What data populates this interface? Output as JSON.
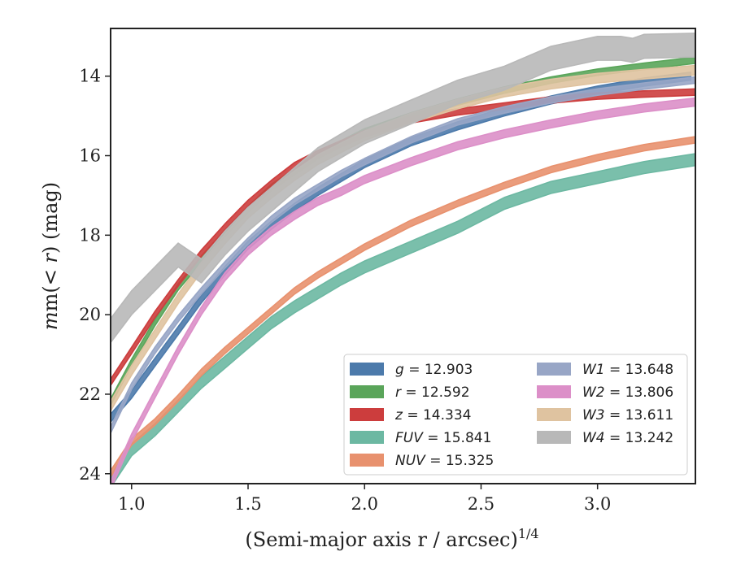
{
  "chart_data": {
    "type": "line",
    "xlabel": "(Semi-major axis r / arcsec)",
    "xlabel_power": "1/4",
    "ylabel_prefix": "m(",
    "ylabel_math": "< r",
    "ylabel_suffix": ") (mag)",
    "xlim": [
      0.91,
      3.42
    ],
    "ylim": [
      24.25,
      12.8
    ],
    "y_inverted": true,
    "xticks": [
      1.0,
      1.5,
      2.0,
      2.5,
      3.0
    ],
    "xtick_labels": [
      "1.0",
      "1.5",
      "2.0",
      "2.5",
      "3.0"
    ],
    "yticks": [
      14,
      16,
      18,
      20,
      22,
      24
    ],
    "ytick_labels": [
      "14",
      "16",
      "18",
      "20",
      "22",
      "24"
    ],
    "grid": false,
    "legend_position": "lower-right",
    "series": [
      {
        "name": "g = 12.903",
        "label_var": "g",
        "label_value": "12.903",
        "color": "#4c7aab",
        "x": [
          0.91,
          1.0,
          1.1,
          1.2,
          1.3,
          1.4,
          1.5,
          1.6,
          1.7,
          1.8,
          1.9,
          2.0,
          2.2,
          2.4,
          2.6,
          2.8,
          3.0,
          3.2,
          3.4
        ],
        "y": [
          22.6,
          22.0,
          21.2,
          20.4,
          19.6,
          18.9,
          18.25,
          17.75,
          17.3,
          16.9,
          16.55,
          16.2,
          15.65,
          15.25,
          14.9,
          14.6,
          14.35,
          14.15,
          14.0
        ],
        "band": 0.1
      },
      {
        "name": "r = 12.592",
        "label_var": "r",
        "label_value": "12.592",
        "color": "#5aa55a",
        "x": [
          0.91,
          1.0,
          1.1,
          1.2,
          1.3,
          1.4,
          1.5,
          1.6,
          1.7,
          1.8,
          1.9,
          2.0,
          2.2,
          2.4,
          2.6,
          2.8,
          3.0,
          3.2,
          3.42
        ],
        "y": [
          22.2,
          21.2,
          20.2,
          19.3,
          18.6,
          17.95,
          17.35,
          16.8,
          16.4,
          16.0,
          15.7,
          15.4,
          15.0,
          14.65,
          14.35,
          14.1,
          13.9,
          13.75,
          13.6
        ],
        "band": 0.08
      },
      {
        "name": "z = 14.334",
        "label_var": "z",
        "label_value": "14.334",
        "color": "#cc3d3d",
        "x": [
          0.91,
          1.0,
          1.1,
          1.2,
          1.3,
          1.4,
          1.5,
          1.6,
          1.7,
          1.8,
          1.9,
          2.0,
          2.2,
          2.4,
          2.6,
          2.8,
          3.0,
          3.2,
          3.42
        ],
        "y": [
          21.7,
          20.9,
          20.0,
          19.2,
          18.45,
          17.8,
          17.2,
          16.7,
          16.25,
          15.95,
          15.7,
          15.45,
          15.1,
          14.9,
          14.75,
          14.6,
          14.5,
          14.45,
          14.4
        ],
        "band": 0.08
      },
      {
        "name": "FUV = 15.841",
        "label_var": "FUV",
        "label_value": "15.841",
        "color": "#6cb8a2",
        "x": [
          0.91,
          1.0,
          1.1,
          1.2,
          1.3,
          1.4,
          1.5,
          1.6,
          1.7,
          1.8,
          1.9,
          2.0,
          2.2,
          2.4,
          2.6,
          2.8,
          3.0,
          3.2,
          3.42
        ],
        "y": [
          24.2,
          23.4,
          22.9,
          22.3,
          21.7,
          21.2,
          20.7,
          20.2,
          19.8,
          19.45,
          19.1,
          18.8,
          18.3,
          17.8,
          17.2,
          16.8,
          16.55,
          16.3,
          16.1
        ],
        "band": 0.15
      },
      {
        "name": "NUV = 15.325",
        "label_var": "NUV",
        "label_value": "15.325",
        "color": "#e8916e",
        "x": [
          0.91,
          1.0,
          1.1,
          1.2,
          1.3,
          1.4,
          1.5,
          1.6,
          1.7,
          1.8,
          1.9,
          2.0,
          2.2,
          2.4,
          2.6,
          2.8,
          3.0,
          3.2,
          3.42
        ],
        "y": [
          24.0,
          23.2,
          22.7,
          22.1,
          21.45,
          20.9,
          20.4,
          19.9,
          19.4,
          19.0,
          18.65,
          18.3,
          17.7,
          17.2,
          16.75,
          16.35,
          16.05,
          15.8,
          15.6
        ],
        "band": 0.08
      },
      {
        "name": "W1 = 13.648",
        "label_var": "W1",
        "label_value": "13.648",
        "color": "#98a6c6",
        "x": [
          0.91,
          1.0,
          1.1,
          1.2,
          1.3,
          1.4,
          1.5,
          1.6,
          1.7,
          1.8,
          1.9,
          2.0,
          2.2,
          2.4,
          2.6,
          2.8,
          3.0,
          3.2,
          3.42
        ],
        "y": [
          22.9,
          21.8,
          20.9,
          20.1,
          19.4,
          18.75,
          18.15,
          17.6,
          17.15,
          16.8,
          16.45,
          16.15,
          15.6,
          15.15,
          14.85,
          14.6,
          14.4,
          14.25,
          14.1
        ],
        "band": 0.08
      },
      {
        "name": "W2 = 13.806",
        "label_var": "W2",
        "label_value": "13.806",
        "color": "#dc8fc8",
        "x": [
          0.91,
          1.0,
          1.1,
          1.2,
          1.3,
          1.4,
          1.5,
          1.6,
          1.7,
          1.8,
          1.9,
          2.0,
          2.2,
          2.4,
          2.6,
          2.8,
          3.0,
          3.2,
          3.42
        ],
        "y": [
          24.3,
          23.1,
          22.0,
          20.9,
          19.9,
          19.05,
          18.4,
          17.9,
          17.5,
          17.15,
          16.9,
          16.6,
          16.15,
          15.75,
          15.45,
          15.2,
          14.98,
          14.8,
          14.65
        ],
        "band": 0.1
      },
      {
        "name": "W3 = 13.611",
        "label_var": "W3",
        "label_value": "13.611",
        "color": "#dfc3a0",
        "x": [
          0.91,
          1.0,
          1.1,
          1.2,
          1.3,
          1.4,
          1.5,
          1.6,
          1.7,
          1.8,
          1.9,
          2.0,
          2.2,
          2.4,
          2.6,
          2.8,
          3.0,
          3.2,
          3.42
        ],
        "y": [
          22.3,
          21.4,
          20.5,
          19.6,
          18.8,
          18.1,
          17.45,
          16.95,
          16.5,
          16.1,
          15.8,
          15.5,
          15.05,
          14.7,
          14.4,
          14.2,
          14.05,
          13.95,
          13.85
        ],
        "band": 0.12
      },
      {
        "name": "W4 = 13.242",
        "label_var": "W4",
        "label_value": "13.242",
        "color": "#b8b8b8",
        "x": [
          0.91,
          1.0,
          1.2,
          1.3,
          1.4,
          1.5,
          1.6,
          1.8,
          2.0,
          2.2,
          2.4,
          2.6,
          2.8,
          3.0,
          3.1,
          3.15,
          3.2,
          3.42
        ],
        "y": [
          20.4,
          19.7,
          18.5,
          18.9,
          18.2,
          17.6,
          17.1,
          16.1,
          15.4,
          14.9,
          14.4,
          14.05,
          13.55,
          13.3,
          13.3,
          13.35,
          13.25,
          13.22
        ],
        "band": 0.3
      }
    ]
  }
}
